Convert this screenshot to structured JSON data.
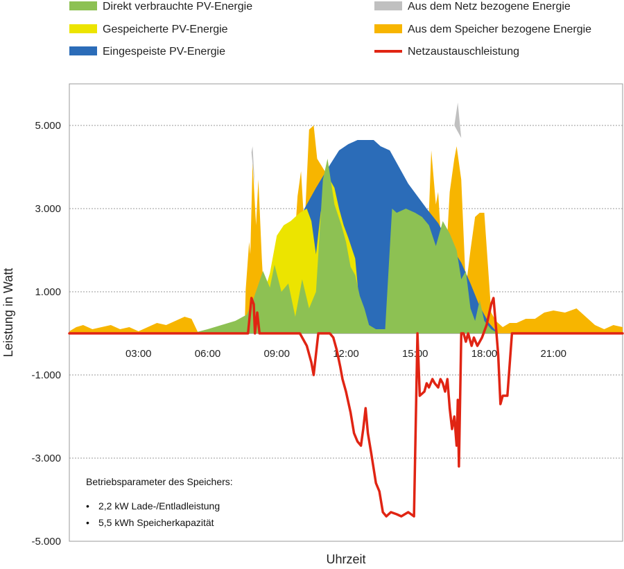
{
  "chart_data": {
    "type": "area",
    "xlabel": "Uhrzeit",
    "ylabel": "Leistung in Watt",
    "x_range": [
      0,
      24
    ],
    "ylim": [
      -5000,
      6000
    ],
    "x_ticks": [
      {
        "value": 3,
        "label": "03:00"
      },
      {
        "value": 6,
        "label": "06:00"
      },
      {
        "value": 9,
        "label": "09:00"
      },
      {
        "value": 12,
        "label": "12:00"
      },
      {
        "value": 15,
        "label": "15:00"
      },
      {
        "value": 18,
        "label": "18:00"
      },
      {
        "value": 21,
        "label": "21:00"
      }
    ],
    "y_ticks": [
      {
        "value": 5000,
        "label": "5.000"
      },
      {
        "value": 3000,
        "label": "3.000"
      },
      {
        "value": 1000,
        "label": "1.000"
      },
      {
        "value": -1000,
        "label": "-1.000"
      },
      {
        "value": -3000,
        "label": "-3.000"
      },
      {
        "value": -5000,
        "label": "-5.000"
      }
    ],
    "grid": true,
    "legend_position": "top",
    "legend": [
      {
        "label": "Direkt verbrauchte PV-Energie",
        "color": "#8dc153",
        "kind": "area"
      },
      {
        "label": "Aus dem Netz bezogene Energie",
        "color": "#c0c0c0",
        "kind": "area"
      },
      {
        "label": "Gespeicherte PV-Energie",
        "color": "#ece400",
        "kind": "area"
      },
      {
        "label": "Aus dem Speicher bezogene Energie",
        "color": "#f7b500",
        "kind": "area"
      },
      {
        "label": "Eingespeiste PV-Energie",
        "color": "#2b6cb8",
        "kind": "area"
      },
      {
        "label": "Netzaustauschleistung",
        "color": "#e02413",
        "kind": "line"
      }
    ],
    "series": [
      {
        "name": "Eingespeiste PV-Energie",
        "color": "#2b6cb8",
        "points": [
          [
            7.6,
            0
          ],
          [
            7.9,
            0
          ],
          [
            8.5,
            700
          ],
          [
            9.3,
            1900
          ],
          [
            10.2,
            3000
          ],
          [
            10.7,
            3500
          ],
          [
            11.3,
            4050
          ],
          [
            11.7,
            4400
          ],
          [
            12.1,
            4550
          ],
          [
            12.5,
            4650
          ],
          [
            12.9,
            4650
          ],
          [
            13.2,
            4650
          ],
          [
            13.5,
            4500
          ],
          [
            13.9,
            4400
          ],
          [
            14.3,
            4000
          ],
          [
            14.7,
            3600
          ],
          [
            15.1,
            3300
          ],
          [
            15.5,
            3000
          ],
          [
            16.0,
            2650
          ],
          [
            16.5,
            2150
          ],
          [
            17.0,
            1700
          ],
          [
            17.4,
            1200
          ],
          [
            17.8,
            650
          ],
          [
            18.2,
            250
          ],
          [
            18.6,
            0
          ]
        ]
      },
      {
        "name": "Gespeicherte PV-Energie",
        "color": "#ece400",
        "points": [
          [
            7.6,
            0
          ],
          [
            7.9,
            250
          ],
          [
            8.3,
            700
          ],
          [
            8.7,
            1450
          ],
          [
            9.0,
            2350
          ],
          [
            9.3,
            2600
          ],
          [
            9.6,
            2700
          ],
          [
            10.0,
            2900
          ],
          [
            10.3,
            3000
          ],
          [
            10.5,
            2700
          ],
          [
            10.7,
            1900
          ],
          [
            10.9,
            2900
          ],
          [
            11.2,
            3800
          ],
          [
            11.5,
            3500
          ],
          [
            11.7,
            3000
          ],
          [
            11.9,
            2600
          ],
          [
            12.1,
            2300
          ],
          [
            12.4,
            1800
          ],
          [
            12.6,
            600
          ],
          [
            12.8,
            200
          ],
          [
            13.0,
            0
          ]
        ]
      },
      {
        "name": "Direkt verbrauchte PV-Energie",
        "color": "#8dc153",
        "points": [
          [
            0,
            0
          ],
          [
            5.3,
            0
          ],
          [
            6.0,
            100
          ],
          [
            6.6,
            200
          ],
          [
            7.2,
            300
          ],
          [
            7.7,
            450
          ],
          [
            8.0,
            850
          ],
          [
            8.4,
            1500
          ],
          [
            8.7,
            1100
          ],
          [
            8.9,
            1650
          ],
          [
            9.2,
            1000
          ],
          [
            9.5,
            1200
          ],
          [
            9.8,
            400
          ],
          [
            10.1,
            1300
          ],
          [
            10.4,
            600
          ],
          [
            10.7,
            1000
          ],
          [
            11.0,
            3700
          ],
          [
            11.2,
            4200
          ],
          [
            11.5,
            3100
          ],
          [
            11.8,
            2600
          ],
          [
            12.0,
            2200
          ],
          [
            12.2,
            1600
          ],
          [
            12.4,
            1400
          ],
          [
            12.6,
            900
          ],
          [
            12.8,
            600
          ],
          [
            13.0,
            200
          ],
          [
            13.3,
            100
          ],
          [
            13.5,
            100
          ],
          [
            13.7,
            100
          ],
          [
            14.0,
            3000
          ],
          [
            14.2,
            2900
          ],
          [
            14.6,
            3000
          ],
          [
            15.0,
            2900
          ],
          [
            15.3,
            2800
          ],
          [
            15.6,
            2600
          ],
          [
            15.9,
            2100
          ],
          [
            16.2,
            2700
          ],
          [
            16.5,
            2400
          ],
          [
            16.8,
            2000
          ],
          [
            17.0,
            1300
          ],
          [
            17.2,
            1500
          ],
          [
            17.4,
            600
          ],
          [
            17.6,
            300
          ],
          [
            17.8,
            800
          ],
          [
            18.0,
            300
          ],
          [
            18.3,
            100
          ],
          [
            18.6,
            0
          ],
          [
            24,
            0
          ]
        ]
      },
      {
        "name": "Aus dem Speicher bezogene Energie",
        "color": "#f7b500",
        "points": [
          [
            0,
            50
          ],
          [
            0.3,
            150
          ],
          [
            0.6,
            200
          ],
          [
            1.0,
            100
          ],
          [
            1.4,
            150
          ],
          [
            1.8,
            200
          ],
          [
            2.2,
            100
          ],
          [
            2.6,
            150
          ],
          [
            3.0,
            50
          ],
          [
            3.4,
            150
          ],
          [
            3.8,
            250
          ],
          [
            4.2,
            200
          ],
          [
            4.6,
            300
          ],
          [
            5.0,
            400
          ],
          [
            5.3,
            350
          ],
          [
            5.6,
            0
          ],
          [
            7.6,
            0
          ],
          [
            7.65,
            1050
          ],
          [
            7.8,
            2200
          ],
          [
            7.85,
            1900
          ],
          [
            7.95,
            4100
          ],
          [
            8.1,
            2600
          ],
          [
            8.2,
            3700
          ],
          [
            8.35,
            1800
          ],
          [
            8.45,
            800
          ],
          [
            9.6,
            800
          ],
          [
            9.9,
            3300
          ],
          [
            10.05,
            3900
          ],
          [
            10.2,
            2500
          ],
          [
            10.4,
            4900
          ],
          [
            10.6,
            5000
          ],
          [
            10.75,
            4200
          ],
          [
            15.4,
            0
          ],
          [
            15.7,
            4400
          ],
          [
            15.9,
            3100
          ],
          [
            16.0,
            3400
          ],
          [
            16.2,
            1500
          ],
          [
            16.4,
            2400
          ],
          [
            16.5,
            3400
          ],
          [
            16.7,
            4200
          ],
          [
            16.8,
            4500
          ],
          [
            17.0,
            3700
          ],
          [
            17.2,
            1100
          ],
          [
            17.4,
            2000
          ],
          [
            17.6,
            2800
          ],
          [
            17.8,
            2900
          ],
          [
            18.0,
            2900
          ],
          [
            18.3,
            500
          ],
          [
            18.5,
            300
          ],
          [
            18.8,
            150
          ],
          [
            19.1,
            250
          ],
          [
            19.4,
            250
          ],
          [
            19.8,
            350
          ],
          [
            20.2,
            350
          ],
          [
            20.6,
            500
          ],
          [
            21.0,
            550
          ],
          [
            21.5,
            500
          ],
          [
            22.0,
            600
          ],
          [
            22.4,
            400
          ],
          [
            22.8,
            200
          ],
          [
            23.2,
            100
          ],
          [
            23.6,
            200
          ],
          [
            24,
            150
          ]
        ]
      },
      {
        "name": "Aus dem Netz bezogene Energie",
        "color": "#c0c0c0",
        "points": [
          [
            7.9,
            4350
          ],
          [
            7.95,
            4500
          ],
          [
            8.05,
            3500
          ],
          [
            16.7,
            5000
          ],
          [
            16.85,
            5550
          ],
          [
            17.0,
            4700
          ]
        ]
      },
      {
        "name": "Netzaustauschleistung",
        "color": "#e02413",
        "points": [
          [
            0,
            0
          ],
          [
            7.6,
            0
          ],
          [
            7.75,
            0
          ],
          [
            7.9,
            850
          ],
          [
            8.0,
            700
          ],
          [
            8.05,
            0
          ],
          [
            8.15,
            500
          ],
          [
            8.25,
            0
          ],
          [
            9.0,
            0
          ],
          [
            10.0,
            0
          ],
          [
            10.3,
            -300
          ],
          [
            10.5,
            -700
          ],
          [
            10.6,
            -1000
          ],
          [
            10.8,
            0
          ],
          [
            11.3,
            0
          ],
          [
            11.45,
            -100
          ],
          [
            11.6,
            -400
          ],
          [
            11.75,
            -800
          ],
          [
            11.85,
            -1100
          ],
          [
            12.0,
            -1400
          ],
          [
            12.2,
            -1900
          ],
          [
            12.35,
            -2400
          ],
          [
            12.5,
            -2600
          ],
          [
            12.65,
            -2700
          ],
          [
            12.75,
            -2300
          ],
          [
            12.85,
            -1800
          ],
          [
            12.95,
            -2400
          ],
          [
            13.1,
            -2900
          ],
          [
            13.3,
            -3600
          ],
          [
            13.45,
            -3800
          ],
          [
            13.6,
            -4300
          ],
          [
            13.75,
            -4400
          ],
          [
            13.95,
            -4300
          ],
          [
            14.2,
            -4350
          ],
          [
            14.4,
            -4400
          ],
          [
            14.55,
            -4350
          ],
          [
            14.7,
            -4300
          ],
          [
            14.95,
            -4400
          ],
          [
            15.1,
            0
          ],
          [
            15.2,
            -1500
          ],
          [
            15.4,
            -1400
          ],
          [
            15.5,
            -1200
          ],
          [
            15.6,
            -1300
          ],
          [
            15.75,
            -1100
          ],
          [
            15.85,
            -1200
          ],
          [
            16.0,
            -1300
          ],
          [
            16.1,
            -1100
          ],
          [
            16.2,
            -1200
          ],
          [
            16.3,
            -1400
          ],
          [
            16.4,
            -1100
          ],
          [
            16.5,
            -1800
          ],
          [
            16.6,
            -2300
          ],
          [
            16.7,
            -2000
          ],
          [
            16.8,
            -2700
          ],
          [
            16.85,
            -1600
          ],
          [
            16.9,
            -3200
          ],
          [
            17.0,
            0
          ],
          [
            17.1,
            0
          ],
          [
            17.2,
            -200
          ],
          [
            17.3,
            0
          ],
          [
            17.45,
            -300
          ],
          [
            17.55,
            -100
          ],
          [
            17.7,
            -300
          ],
          [
            17.8,
            -200
          ],
          [
            17.9,
            -100
          ],
          [
            18.1,
            200
          ],
          [
            18.3,
            700
          ],
          [
            18.4,
            850
          ],
          [
            18.5,
            200
          ],
          [
            18.6,
            -500
          ],
          [
            18.7,
            -1700
          ],
          [
            18.8,
            -1500
          ],
          [
            18.9,
            -1500
          ],
          [
            19.0,
            -1500
          ],
          [
            19.2,
            0
          ],
          [
            24,
            0
          ]
        ]
      }
    ],
    "annotation": {
      "title": "Betriebsparameter des Speichers:",
      "items": [
        "2,2 kW Lade-/Entladleistung",
        "5,5 kWh Speicherkapazität"
      ]
    }
  }
}
